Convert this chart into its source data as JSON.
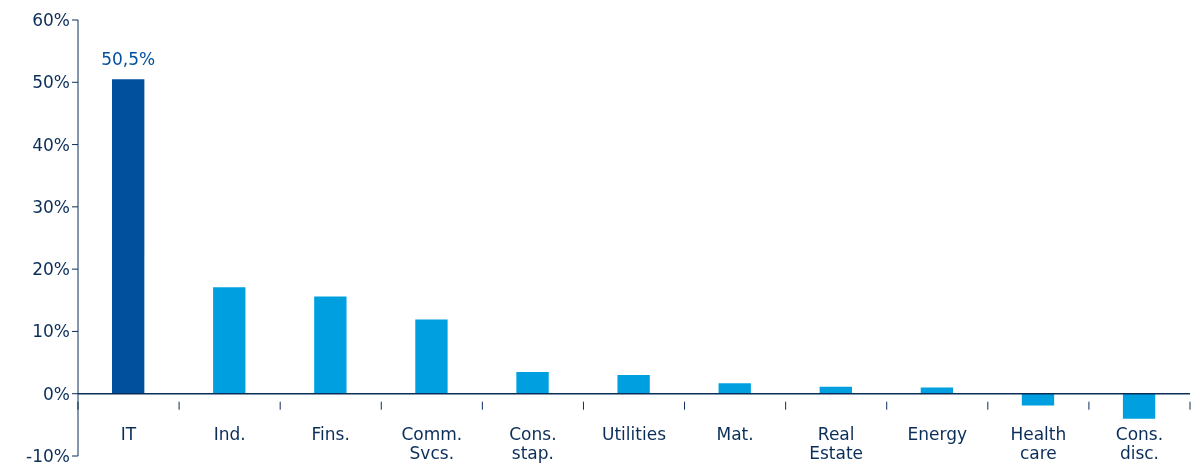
{
  "chart_data": {
    "type": "bar",
    "categories": [
      "IT",
      "Ind.",
      "Fins.",
      "Comm. Svcs.",
      "Cons. stap.",
      "Utilities",
      "Mat.",
      "Real Estate",
      "Energy",
      "Health care",
      "Cons. disc."
    ],
    "values": [
      50.5,
      17.1,
      15.6,
      11.9,
      3.5,
      3.0,
      1.7,
      1.1,
      1.0,
      -1.9,
      -4.0
    ],
    "colors": [
      "#00509e",
      "#00a0e0",
      "#00a0e0",
      "#00a0e0",
      "#00a0e0",
      "#00a0e0",
      "#00a0e0",
      "#00a0e0",
      "#00a0e0",
      "#00a0e0",
      "#00a0e0"
    ],
    "value_labels": [
      "50,5%",
      null,
      null,
      null,
      null,
      null,
      null,
      null,
      null,
      null,
      null
    ],
    "ylim": [
      -10,
      60
    ],
    "yticks": [
      {
        "value": -10,
        "label": "-10%"
      },
      {
        "value": 0,
        "label": "0%"
      },
      {
        "value": 10,
        "label": "10%"
      },
      {
        "value": 20,
        "label": "20%"
      },
      {
        "value": 30,
        "label": "30%"
      },
      {
        "value": 40,
        "label": "40%"
      },
      {
        "value": 50,
        "label": "50%"
      },
      {
        "value": 60,
        "label": "60%"
      }
    ],
    "grid": false,
    "legend": false
  }
}
